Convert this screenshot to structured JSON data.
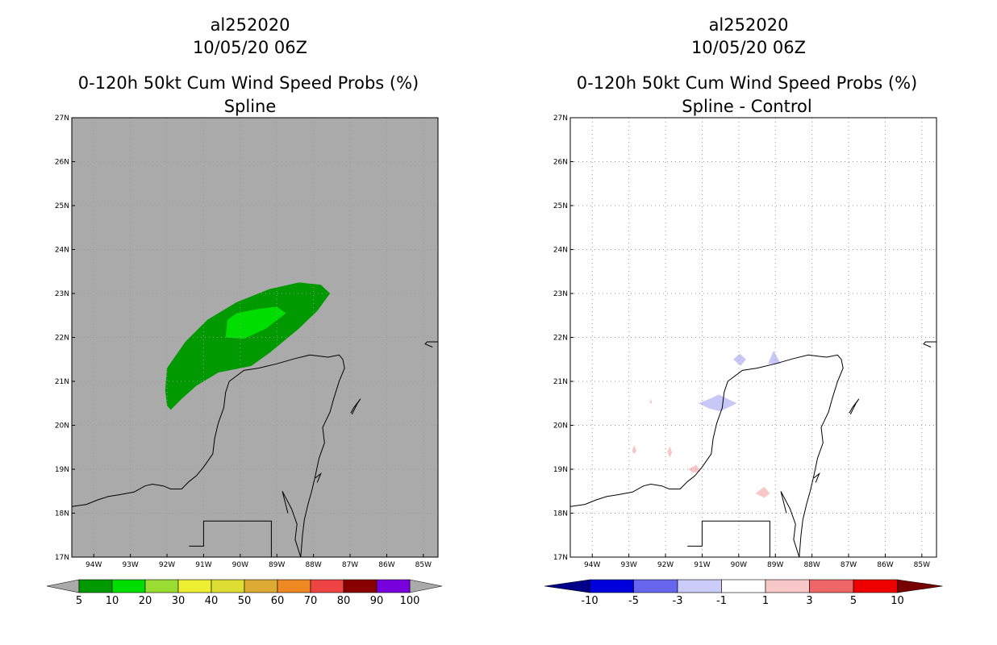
{
  "chart_data": [
    {
      "type": "heatmap",
      "title_lines": [
        "al252020",
        "10/05/20 06Z",
        "0-120h 50kt Cum Wind Speed Probs (%)",
        "Spline"
      ],
      "x_ticks": [
        "94W",
        "93W",
        "92W",
        "91W",
        "90W",
        "89W",
        "88W",
        "87W",
        "86W",
        "85W"
      ],
      "y_ticks": [
        "17N",
        "18N",
        "19N",
        "20N",
        "21N",
        "22N",
        "23N",
        "24N",
        "25N",
        "26N",
        "27N"
      ],
      "xlim": [
        -94.6,
        -84.6
      ],
      "ylim": [
        17,
        27
      ],
      "grid": true,
      "background_color": "#aaaaaa",
      "contour_levels": [
        "5",
        "10",
        "20",
        "30",
        "40",
        "50",
        "60",
        "70",
        "80",
        "90",
        "100"
      ],
      "colorbar_colors": [
        "#009900",
        "#00dd00",
        "#99dd33",
        "#eeee33",
        "#dddd33",
        "#ddaa33",
        "#ee8822",
        "#ee4444",
        "#880000",
        "#7700dd"
      ],
      "regions": [
        {
          "level": "5-10",
          "color": "#009900",
          "polygon": [
            [
              -91.9,
              20.35
            ],
            [
              -91.6,
              20.6
            ],
            [
              -91.2,
              20.9
            ],
            [
              -90.6,
              21.2
            ],
            [
              -89.7,
              21.35
            ],
            [
              -89.2,
              21.65
            ],
            [
              -88.4,
              22.2
            ],
            [
              -87.9,
              22.6
            ],
            [
              -87.55,
              23.0
            ],
            [
              -87.8,
              23.2
            ],
            [
              -88.4,
              23.25
            ],
            [
              -89.2,
              23.1
            ],
            [
              -90.1,
              22.8
            ],
            [
              -90.9,
              22.4
            ],
            [
              -91.5,
              21.9
            ],
            [
              -92.0,
              21.3
            ],
            [
              -92.05,
              20.8
            ],
            [
              -92.0,
              20.45
            ]
          ]
        },
        {
          "level": "10-20",
          "color": "#00dd00",
          "polygon": [
            [
              -90.4,
              22.0
            ],
            [
              -89.9,
              21.97
            ],
            [
              -89.3,
              22.2
            ],
            [
              -88.75,
              22.55
            ],
            [
              -89.0,
              22.7
            ],
            [
              -89.5,
              22.65
            ],
            [
              -90.1,
              22.55
            ],
            [
              -90.35,
              22.4
            ]
          ]
        }
      ]
    },
    {
      "type": "heatmap",
      "title_lines": [
        "al252020",
        "10/05/20 06Z",
        "0-120h 50kt Cum Wind Speed Probs (%)",
        "Spline - Control"
      ],
      "x_ticks": [
        "94W",
        "93W",
        "92W",
        "91W",
        "90W",
        "89W",
        "88W",
        "87W",
        "86W",
        "85W"
      ],
      "y_ticks": [
        "17N",
        "18N",
        "19N",
        "20N",
        "21N",
        "22N",
        "23N",
        "24N",
        "25N",
        "26N",
        "27N"
      ],
      "xlim": [
        -94.6,
        -84.6
      ],
      "ylim": [
        17,
        27
      ],
      "grid": true,
      "background_color": "#ffffff",
      "contour_levels": [
        "-10",
        "-5",
        "-3",
        "-1",
        "1",
        "3",
        "5",
        "10"
      ],
      "colorbar_colors": [
        "#0000dd",
        "#6666ee",
        "#ccccf8",
        "#ffffff",
        "#f8c8c8",
        "#ee6666",
        "#ee0000"
      ],
      "regions": [
        {
          "level": "-3 to -1",
          "color": "#c8c8f8",
          "polygon": [
            [
              -91.1,
              20.5
            ],
            [
              -90.8,
              20.6
            ],
            [
              -90.55,
              20.7
            ],
            [
              -90.05,
              20.5
            ],
            [
              -90.5,
              20.32
            ],
            [
              -90.8,
              20.38
            ]
          ]
        },
        {
          "level": "-3 to -1",
          "color": "#c8c8f8",
          "polygon": [
            [
              -90.15,
              21.5
            ],
            [
              -89.95,
              21.35
            ],
            [
              -89.8,
              21.5
            ],
            [
              -89.97,
              21.63
            ]
          ]
        },
        {
          "level": "-3 to -1",
          "color": "#c8c8f8",
          "polygon": [
            [
              -89.2,
              21.4
            ],
            [
              -89.05,
              21.7
            ],
            [
              -88.85,
              21.4
            ]
          ]
        },
        {
          "level": "1 to 3",
          "color": "#f8c8c8",
          "polygon": [
            [
              -92.43,
              20.5
            ],
            [
              -92.4,
              20.62
            ],
            [
              -92.37,
              20.5
            ]
          ]
        },
        {
          "level": "1 to 3",
          "color": "#f8c8c8",
          "polygon": [
            [
              -92.92,
              19.4
            ],
            [
              -92.86,
              19.55
            ],
            [
              -92.79,
              19.42
            ],
            [
              -92.85,
              19.35
            ]
          ]
        },
        {
          "level": "1 to 3",
          "color": "#f8c8c8",
          "polygon": [
            [
              -91.95,
              19.4
            ],
            [
              -91.88,
              19.52
            ],
            [
              -91.82,
              19.38
            ],
            [
              -91.88,
              19.26
            ]
          ]
        },
        {
          "level": "1 to 3",
          "color": "#f8c8c8",
          "polygon": [
            [
              -91.38,
              19.0
            ],
            [
              -91.16,
              19.1
            ],
            [
              -91.05,
              18.95
            ],
            [
              -91.25,
              18.92
            ]
          ]
        },
        {
          "level": "1 to 3",
          "color": "#f8c8c8",
          "polygon": [
            [
              -89.55,
              18.45
            ],
            [
              -89.3,
              18.6
            ],
            [
              -89.15,
              18.45
            ],
            [
              -89.3,
              18.35
            ]
          ]
        }
      ]
    }
  ],
  "coastline": [
    [
      [
        -94.6,
        18.15
      ],
      [
        -94.2,
        18.2
      ],
      [
        -93.9,
        18.3
      ],
      [
        -93.6,
        18.38
      ],
      [
        -93.3,
        18.42
      ],
      [
        -92.9,
        18.48
      ],
      [
        -92.6,
        18.62
      ],
      [
        -92.4,
        18.66
      ],
      [
        -92.1,
        18.62
      ],
      [
        -91.9,
        18.55
      ],
      [
        -91.6,
        18.55
      ],
      [
        -91.4,
        18.72
      ],
      [
        -91.2,
        18.85
      ],
      [
        -91.0,
        19.05
      ],
      [
        -90.75,
        19.35
      ],
      [
        -90.7,
        19.7
      ],
      [
        -90.6,
        20.05
      ],
      [
        -90.45,
        20.4
      ],
      [
        -90.4,
        20.75
      ],
      [
        -90.3,
        21.0
      ],
      [
        -89.9,
        21.25
      ],
      [
        -89.5,
        21.3
      ],
      [
        -89.0,
        21.4
      ],
      [
        -88.5,
        21.52
      ],
      [
        -88.1,
        21.6
      ],
      [
        -87.6,
        21.55
      ],
      [
        -87.3,
        21.6
      ],
      [
        -87.2,
        21.5
      ],
      [
        -87.15,
        21.3
      ],
      [
        -87.3,
        21.0
      ],
      [
        -87.45,
        20.6
      ],
      [
        -87.55,
        20.3
      ],
      [
        -87.75,
        19.95
      ],
      [
        -87.7,
        19.6
      ],
      [
        -87.85,
        19.25
      ],
      [
        -87.95,
        18.85
      ],
      [
        -88.05,
        18.5
      ],
      [
        -88.15,
        18.2
      ],
      [
        -88.25,
        17.85
      ],
      [
        -88.3,
        17.5
      ],
      [
        -88.35,
        17.0
      ]
    ],
    [
      [
        -88.35,
        17.0
      ],
      [
        -88.5,
        17.4
      ],
      [
        -88.45,
        17.75
      ],
      [
        -88.6,
        18.1
      ],
      [
        -88.85,
        18.5
      ],
      [
        -88.7,
        18.0
      ]
    ],
    [
      [
        -84.6,
        21.9
      ],
      [
        -84.9,
        21.9
      ],
      [
        -84.95,
        21.85
      ],
      [
        -84.75,
        21.78
      ]
    ]
  ],
  "border": [
    [
      -89.15,
      17.0
    ],
    [
      -89.15,
      17.82
    ],
    [
      -91.0,
      17.82
    ],
    [
      -91.0,
      17.25
    ],
    [
      -91.4,
      17.25
    ]
  ],
  "islands": [
    [
      [
        -86.95,
        20.25
      ],
      [
        -86.8,
        20.5
      ],
      [
        -86.72,
        20.6
      ],
      [
        -86.9,
        20.4
      ],
      [
        -86.98,
        20.28
      ]
    ],
    [
      [
        -87.95,
        18.8
      ],
      [
        -87.8,
        18.9
      ],
      [
        -87.9,
        18.7
      ]
    ]
  ]
}
